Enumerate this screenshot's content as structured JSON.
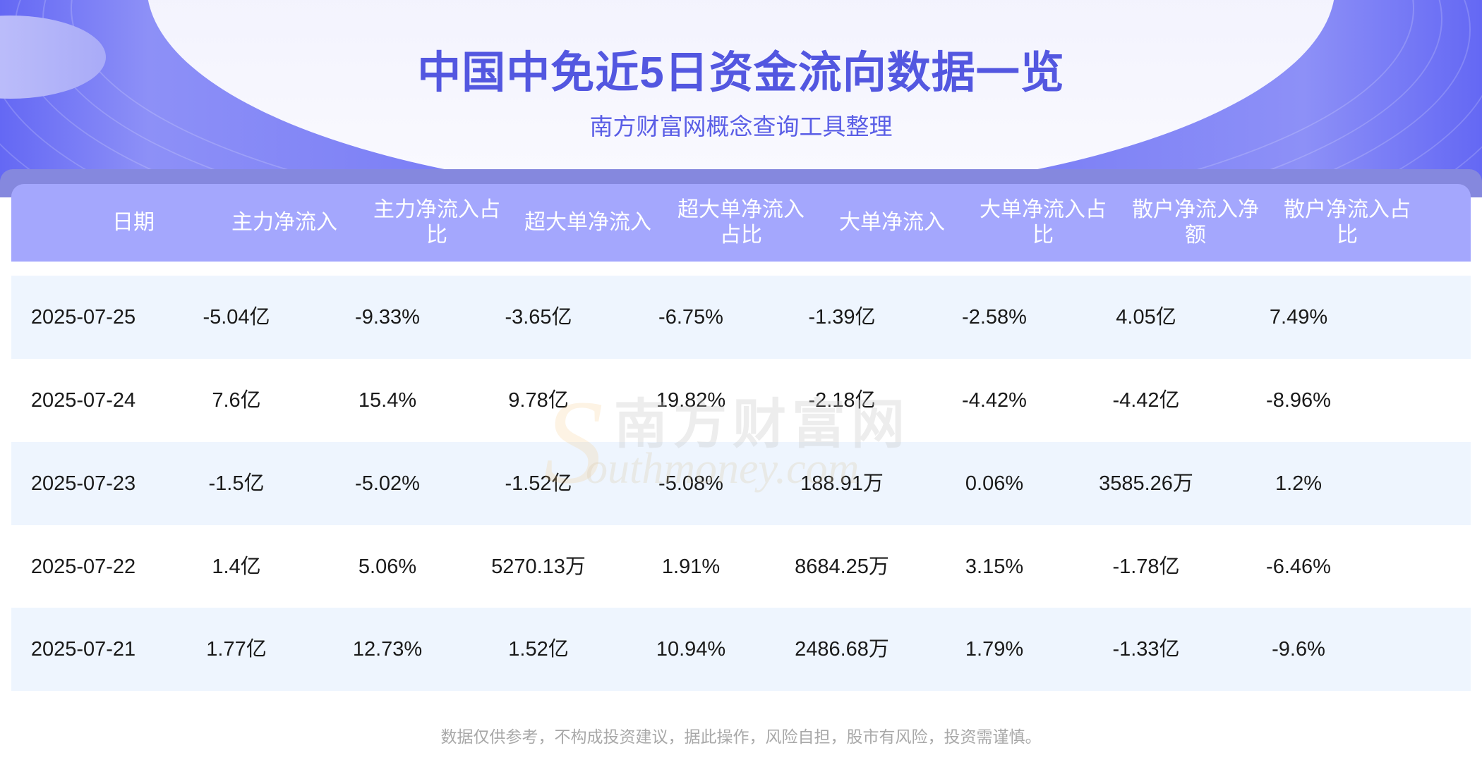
{
  "header": {
    "title": "中国中免近5日资金流向数据一览",
    "subtitle": "南方财富网概念查询工具整理"
  },
  "table": {
    "columns": [
      "日期",
      "主力净流入",
      "主力净流入占比",
      "超大单净流入",
      "超大单净流入占比",
      "大单净流入",
      "大单净流入占比",
      "散户净流入净额",
      "散户净流入占比"
    ],
    "rows": [
      [
        "2025-07-25",
        "-5.04亿",
        "-9.33%",
        "-3.65亿",
        "-6.75%",
        "-1.39亿",
        "-2.58%",
        "4.05亿",
        "7.49%"
      ],
      [
        "2025-07-24",
        "7.6亿",
        "15.4%",
        "9.78亿",
        "19.82%",
        "-2.18亿",
        "-4.42%",
        "-4.42亿",
        "-8.96%"
      ],
      [
        "2025-07-23",
        "-1.5亿",
        "-5.02%",
        "-1.52亿",
        "-5.08%",
        "188.91万",
        "0.06%",
        "3585.26万",
        "1.2%"
      ],
      [
        "2025-07-22",
        "1.4亿",
        "5.06%",
        "5270.13万",
        "1.91%",
        "8684.25万",
        "3.15%",
        "-1.78亿",
        "-6.46%"
      ],
      [
        "2025-07-21",
        "1.77亿",
        "12.73%",
        "1.52亿",
        "10.94%",
        "2486.68万",
        "1.79%",
        "-1.33亿",
        "-9.6%"
      ]
    ]
  },
  "watermark": {
    "cn": "南方财富网",
    "en": "outhmoney.com",
    "s": "S"
  },
  "footer": {
    "disclaimer": "数据仅供参考，不构成投资建议，据此操作，风险自担，股市有风险，投资需谨慎。"
  },
  "colors": {
    "accent": "#5357e0",
    "header_bg": "#a4a7fd",
    "row_alt": "#eef5fe",
    "hero_bg": "#6a6ef5"
  }
}
